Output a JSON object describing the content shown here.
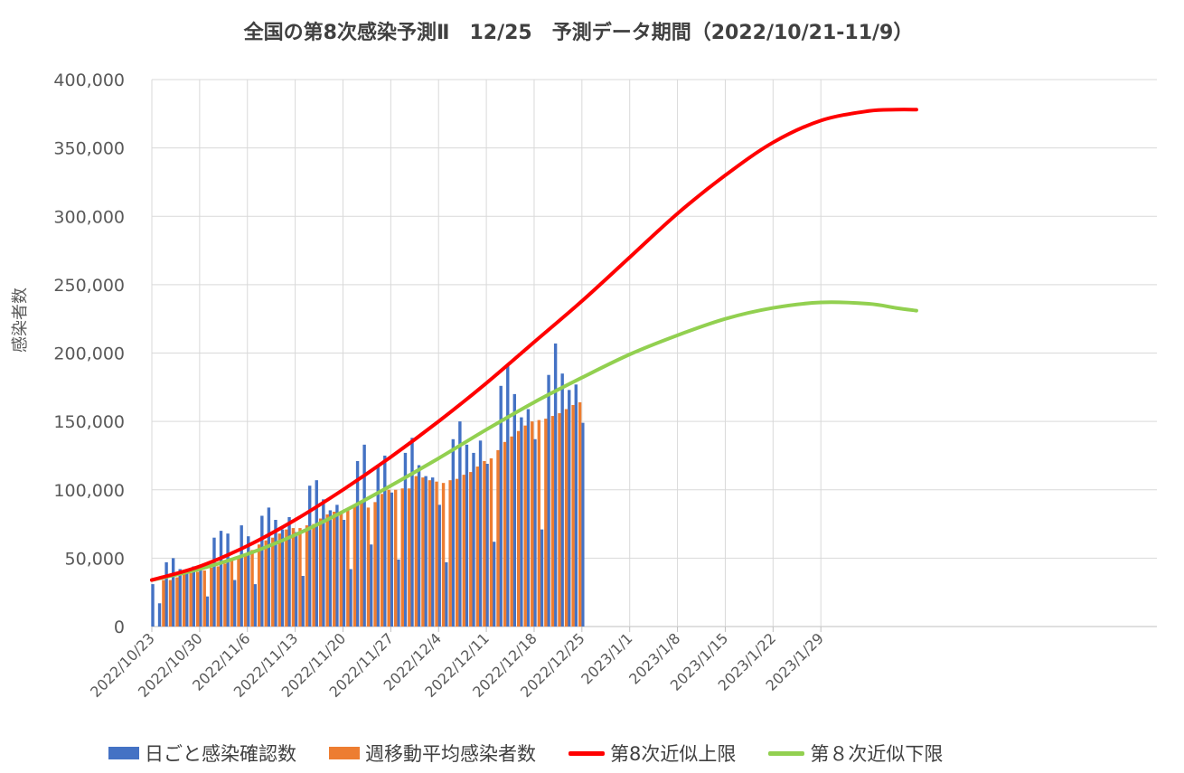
{
  "chart_data": {
    "type": "bar",
    "title": "全国の第8次感染予測Ⅱ　12/25　予測データ期間（2022/10/21-11/9）",
    "ylabel": "感染者数",
    "ylim": [
      0,
      400000
    ],
    "yticks": [
      "0",
      "50,000",
      "100,000",
      "150,000",
      "200,000",
      "250,000",
      "300,000",
      "350,000",
      "400,000"
    ],
    "xticks": [
      "2022/10/23",
      "2022/10/30",
      "2022/11/6",
      "2022/11/13",
      "2022/11/20",
      "2022/11/27",
      "2022/12/4",
      "2022/12/11",
      "2022/12/18",
      "2022/12/25",
      "2023/1/1",
      "2023/1/8",
      "2023/1/15",
      "2023/1/22",
      "2023/1/29"
    ],
    "x_start": "2022/10/23",
    "x_end": "2023/2/2",
    "grid": true,
    "legend_position": "bottom",
    "series": [
      {
        "name": "日ごと感染確認数",
        "kind": "bar",
        "color": "#4472C4",
        "values": [
          31000,
          17000,
          47000,
          50000,
          42000,
          40000,
          44000,
          41000,
          22000,
          65000,
          70000,
          68000,
          34000,
          74000,
          66000,
          31000,
          81000,
          87000,
          78000,
          71000,
          80000,
          69000,
          37000,
          103000,
          107000,
          93000,
          85000,
          89000,
          78000,
          42000,
          121000,
          133000,
          60000,
          118000,
          125000,
          98000,
          49000,
          127000,
          138000,
          118000,
          110000,
          109000,
          89000,
          47000,
          137000,
          150000,
          133000,
          127000,
          136000,
          119000,
          62000,
          176000,
          191000,
          170000,
          153000,
          159000,
          137000,
          71000,
          184000,
          207000,
          185000,
          173000,
          177000,
          149000
        ]
      },
      {
        "name": "週移動平均感染者数",
        "kind": "bar",
        "color": "#ED7D31",
        "values": [
          34000,
          34000,
          36000,
          38000,
          39000,
          40000,
          41000,
          43000,
          44000,
          46000,
          49000,
          51000,
          53000,
          56000,
          60000,
          63000,
          65000,
          68000,
          71000,
          72000,
          72000,
          74000,
          75000,
          79000,
          82000,
          84000,
          84000,
          86000,
          88000,
          91000,
          87000,
          91000,
          97000,
          100000,
          100000,
          101000,
          101000,
          110000,
          109000,
          107000,
          106000,
          105000,
          107000,
          108000,
          111000,
          113000,
          117000,
          121000,
          123000,
          129000,
          135000,
          139000,
          143000,
          147000,
          150000,
          151000,
          152000,
          154000,
          156000,
          159000,
          162000,
          164000
        ]
      },
      {
        "name": "第8次近似上限",
        "kind": "line",
        "color": "#FF0000",
        "points": [
          [
            0,
            34000
          ],
          [
            7,
            44000
          ],
          [
            14,
            59000
          ],
          [
            21,
            78000
          ],
          [
            28,
            100000
          ],
          [
            35,
            124000
          ],
          [
            42,
            150000
          ],
          [
            49,
            178000
          ],
          [
            56,
            208000
          ],
          [
            63,
            238000
          ],
          [
            70,
            270000
          ],
          [
            77,
            302000
          ],
          [
            84,
            330000
          ],
          [
            91,
            354000
          ],
          [
            98,
            370000
          ],
          [
            105,
            377000
          ],
          [
            109,
            378000
          ],
          [
            112,
            378000
          ]
        ]
      },
      {
        "name": "第８次近似下限",
        "kind": "line",
        "color": "#92D050",
        "points": [
          [
            0,
            34000
          ],
          [
            7,
            42000
          ],
          [
            14,
            53000
          ],
          [
            21,
            67000
          ],
          [
            28,
            84000
          ],
          [
            35,
            103000
          ],
          [
            42,
            123000
          ],
          [
            49,
            144000
          ],
          [
            56,
            164000
          ],
          [
            63,
            182000
          ],
          [
            70,
            199000
          ],
          [
            77,
            213000
          ],
          [
            84,
            225000
          ],
          [
            91,
            233000
          ],
          [
            98,
            237000
          ],
          [
            105,
            236000
          ],
          [
            109,
            233000
          ],
          [
            112,
            231000
          ]
        ]
      }
    ]
  }
}
